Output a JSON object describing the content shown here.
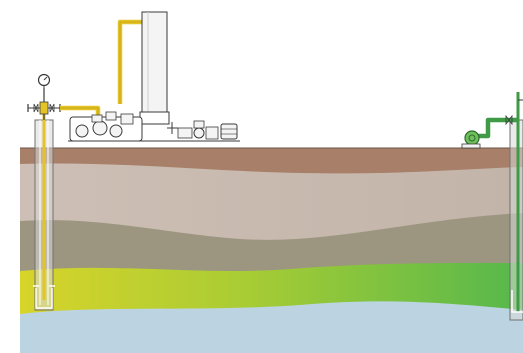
{
  "diagram": {
    "colors": {
      "background": "#ffffff",
      "topsoil": "#a8806a",
      "upper_layer": "#c5b6ab",
      "middle_layer": "#9c9680",
      "aquifer_left": "#d8d42a",
      "aquifer_right": "#55b84c",
      "bedrock": "#bcd4e2",
      "injection_pipe": "#e3c325",
      "production_pipe": "#3f9b45",
      "equipment_outline": "#3a3a3a",
      "equipment_fill": "#f4f4f4",
      "well_casing": "#d8d8d8"
    },
    "icons": [
      "pressure-gauge-icon",
      "injection-wellhead-icon",
      "storage-tank-icon",
      "compressor-unit-icon",
      "pump-icon",
      "production-wellhead-icon"
    ]
  }
}
